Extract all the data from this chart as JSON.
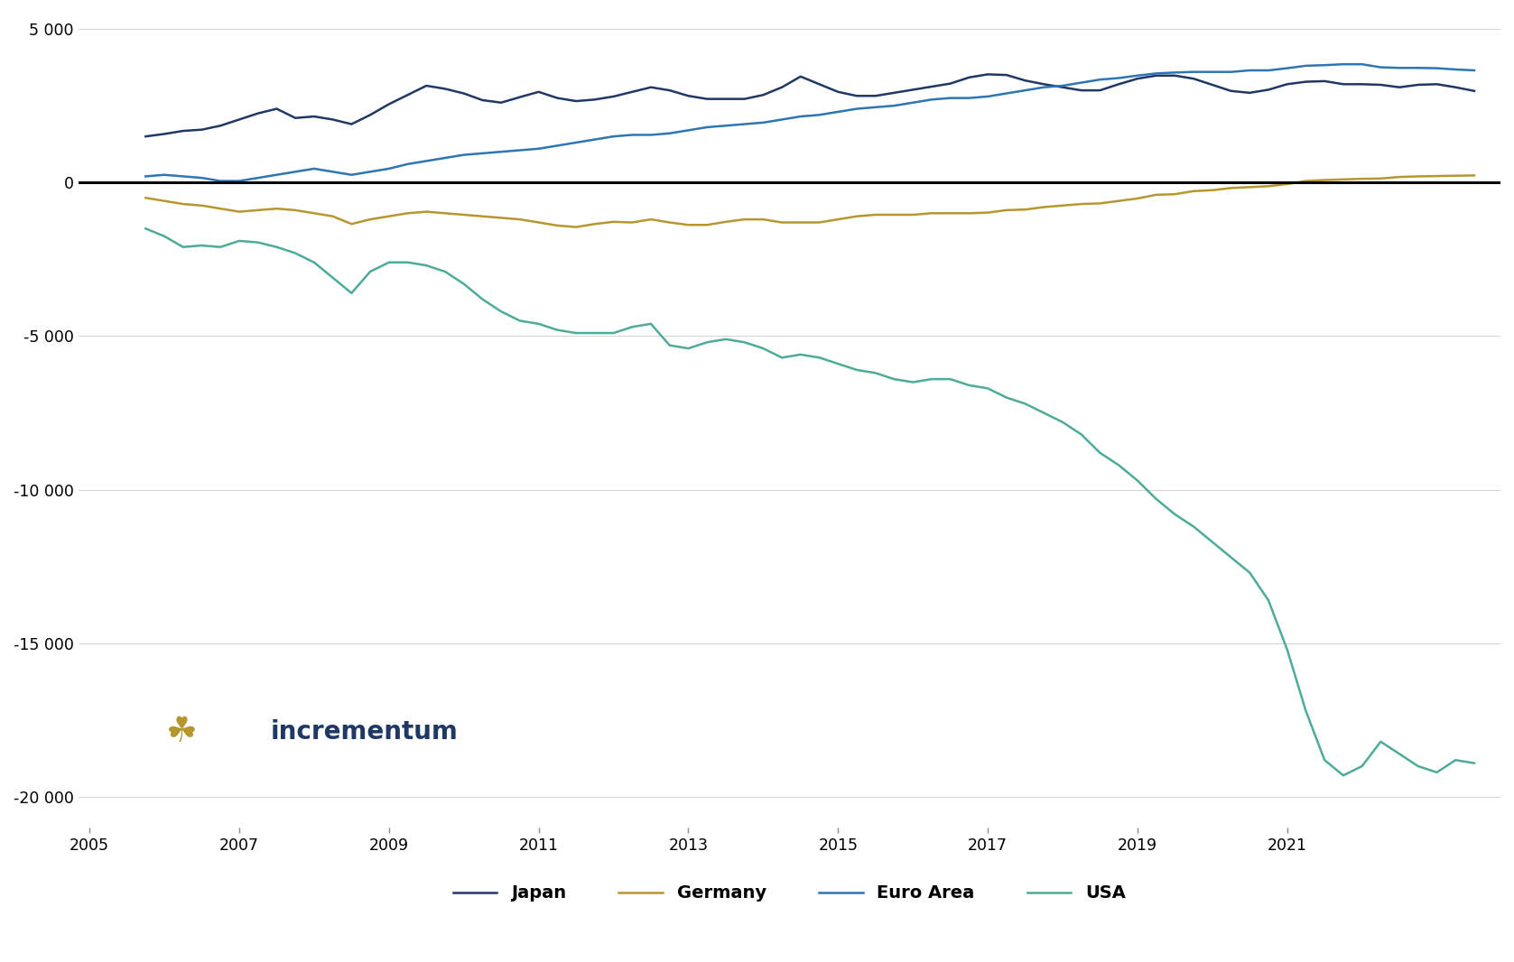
{
  "ylim": [
    -21000,
    5500
  ],
  "yticks": [
    5000,
    0,
    -5000,
    -10000,
    -15000,
    -20000
  ],
  "ytick_labels": [
    "5 000",
    "0",
    "-5 000",
    "-10 000",
    "-15 000",
    "-20 000"
  ],
  "xticks": [
    2005,
    2007,
    2009,
    2011,
    2013,
    2015,
    2017,
    2019,
    2021
  ],
  "background_color": "#ffffff",
  "japan_color": "#1f3864",
  "germany_color": "#b8962e",
  "euro_area_color": "#2e75b6",
  "usa_color": "#4dab9a",
  "zero_line_color": "#000000",
  "legend_labels": [
    "Japan",
    "Germany",
    "Euro Area",
    "USA"
  ],
  "incrementum_text_color": "#1f3864",
  "japan": [
    1500,
    1580,
    1680,
    1720,
    1850,
    2050,
    2250,
    2400,
    2100,
    2150,
    2050,
    1900,
    2200,
    2550,
    2850,
    3150,
    3050,
    2900,
    2680,
    2600,
    2780,
    2950,
    2750,
    2650,
    2700,
    2800,
    2950,
    3100,
    3000,
    2820,
    2720,
    2720,
    2720,
    2850,
    3100,
    3450,
    3200,
    2950,
    2820,
    2820,
    2920,
    3020,
    3120,
    3220,
    3420,
    3520,
    3500,
    3320,
    3200,
    3100,
    3000,
    3000,
    3200,
    3380,
    3480,
    3480,
    3380,
    3180,
    2980,
    2920,
    3020,
    3200,
    3280,
    3300,
    3200,
    3200,
    3180,
    3100,
    3180,
    3200,
    3100,
    2980
  ],
  "germany": [
    -500,
    -600,
    -700,
    -750,
    -850,
    -950,
    -900,
    -850,
    -900,
    -1000,
    -1100,
    -1350,
    -1200,
    -1100,
    -1000,
    -950,
    -1000,
    -1050,
    -1100,
    -1150,
    -1200,
    -1300,
    -1400,
    -1450,
    -1350,
    -1280,
    -1300,
    -1200,
    -1300,
    -1380,
    -1380,
    -1280,
    -1200,
    -1200,
    -1300,
    -1300,
    -1300,
    -1200,
    -1100,
    -1050,
    -1050,
    -1050,
    -1000,
    -1000,
    -1000,
    -980,
    -900,
    -880,
    -800,
    -750,
    -700,
    -680,
    -600,
    -520,
    -400,
    -380,
    -280,
    -250,
    -180,
    -150,
    -120,
    -50,
    50,
    80,
    100,
    120,
    130,
    180,
    200,
    210,
    220,
    230
  ],
  "euro_area": [
    200,
    250,
    200,
    150,
    50,
    50,
    150,
    250,
    350,
    450,
    350,
    250,
    350,
    450,
    600,
    700,
    800,
    900,
    950,
    1000,
    1050,
    1100,
    1200,
    1300,
    1400,
    1500,
    1550,
    1550,
    1600,
    1700,
    1800,
    1850,
    1900,
    1950,
    2050,
    2150,
    2200,
    2300,
    2400,
    2450,
    2500,
    2600,
    2700,
    2750,
    2750,
    2800,
    2900,
    3000,
    3100,
    3150,
    3250,
    3350,
    3400,
    3480,
    3550,
    3580,
    3600,
    3600,
    3600,
    3650,
    3650,
    3720,
    3800,
    3820,
    3850,
    3850,
    3750,
    3730,
    3730,
    3720,
    3680,
    3650
  ],
  "usa": [
    -1500,
    -1750,
    -2100,
    -2050,
    -2100,
    -1900,
    -1950,
    -2100,
    -2300,
    -2600,
    -3100,
    -3600,
    -2900,
    -2600,
    -2600,
    -2700,
    -2900,
    -3300,
    -3800,
    -4200,
    -4500,
    -4600,
    -4800,
    -4900,
    -4900,
    -4900,
    -4700,
    -4600,
    -5300,
    -5400,
    -5200,
    -5100,
    -5200,
    -5400,
    -5700,
    -5600,
    -5700,
    -5900,
    -6100,
    -6200,
    -6400,
    -6500,
    -6400,
    -6400,
    -6600,
    -6700,
    -7000,
    -7200,
    -7500,
    -7800,
    -8200,
    -8800,
    -9200,
    -9700,
    -10300,
    -10800,
    -11200,
    -11700,
    -12200,
    -12700,
    -13600,
    -15200,
    -17200,
    -18800,
    -19300,
    -19000,
    -18200,
    -18600,
    -19000,
    -19200,
    -18800,
    -18900
  ]
}
